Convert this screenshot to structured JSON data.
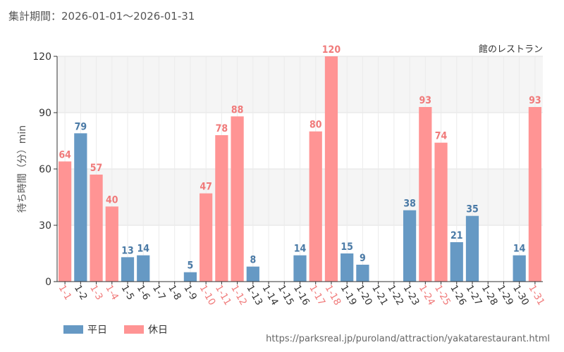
{
  "header": {
    "period_label": "集計期間：2026-01-01〜2026-01-31"
  },
  "footer": {
    "source_url": "https://parksreal.jp/puroland/attraction/yakatarestaurant.html"
  },
  "legend": {
    "items": [
      {
        "label": "平日",
        "color": "#6699c4"
      },
      {
        "label": "休日",
        "color": "#ff9494"
      }
    ]
  },
  "colors": {
    "weekday": "#6699c4",
    "holiday": "#ff9494",
    "weekday_label": "#4a7aa6",
    "holiday_label": "#f07a7a",
    "tick_holiday": "#f07a7a",
    "tick_weekday": "#333333"
  },
  "chart_data": {
    "type": "bar",
    "title": "館のレストラン",
    "xlabel": "",
    "ylabel": "待ち時間（分）min",
    "ylim": [
      0,
      120
    ],
    "yticks": [
      0,
      30,
      60,
      90,
      120
    ],
    "categories": [
      "1-1",
      "1-2",
      "1-3",
      "1-4",
      "1-5",
      "1-6",
      "1-7",
      "1-8",
      "1-9",
      "1-10",
      "1-11",
      "1-12",
      "1-13",
      "1-14",
      "1-15",
      "1-16",
      "1-17",
      "1-18",
      "1-19",
      "1-20",
      "1-21",
      "1-22",
      "1-23",
      "1-24",
      "1-25",
      "1-26",
      "1-27",
      "1-28",
      "1-29",
      "1-30",
      "1-31"
    ],
    "values": [
      64,
      79,
      57,
      40,
      13,
      14,
      null,
      null,
      5,
      47,
      78,
      88,
      8,
      null,
      null,
      14,
      80,
      120,
      15,
      9,
      null,
      null,
      38,
      93,
      74,
      21,
      35,
      null,
      null,
      14,
      93
    ],
    "day_type": [
      "holiday",
      "weekday",
      "holiday",
      "holiday",
      "weekday",
      "weekday",
      "weekday",
      "weekday",
      "weekday",
      "holiday",
      "holiday",
      "holiday",
      "weekday",
      "weekday",
      "weekday",
      "weekday",
      "holiday",
      "holiday",
      "weekday",
      "weekday",
      "weekday",
      "weekday",
      "weekday",
      "holiday",
      "holiday",
      "weekday",
      "weekday",
      "weekday",
      "weekday",
      "weekday",
      "holiday"
    ],
    "legend_position": "bottom-left"
  }
}
